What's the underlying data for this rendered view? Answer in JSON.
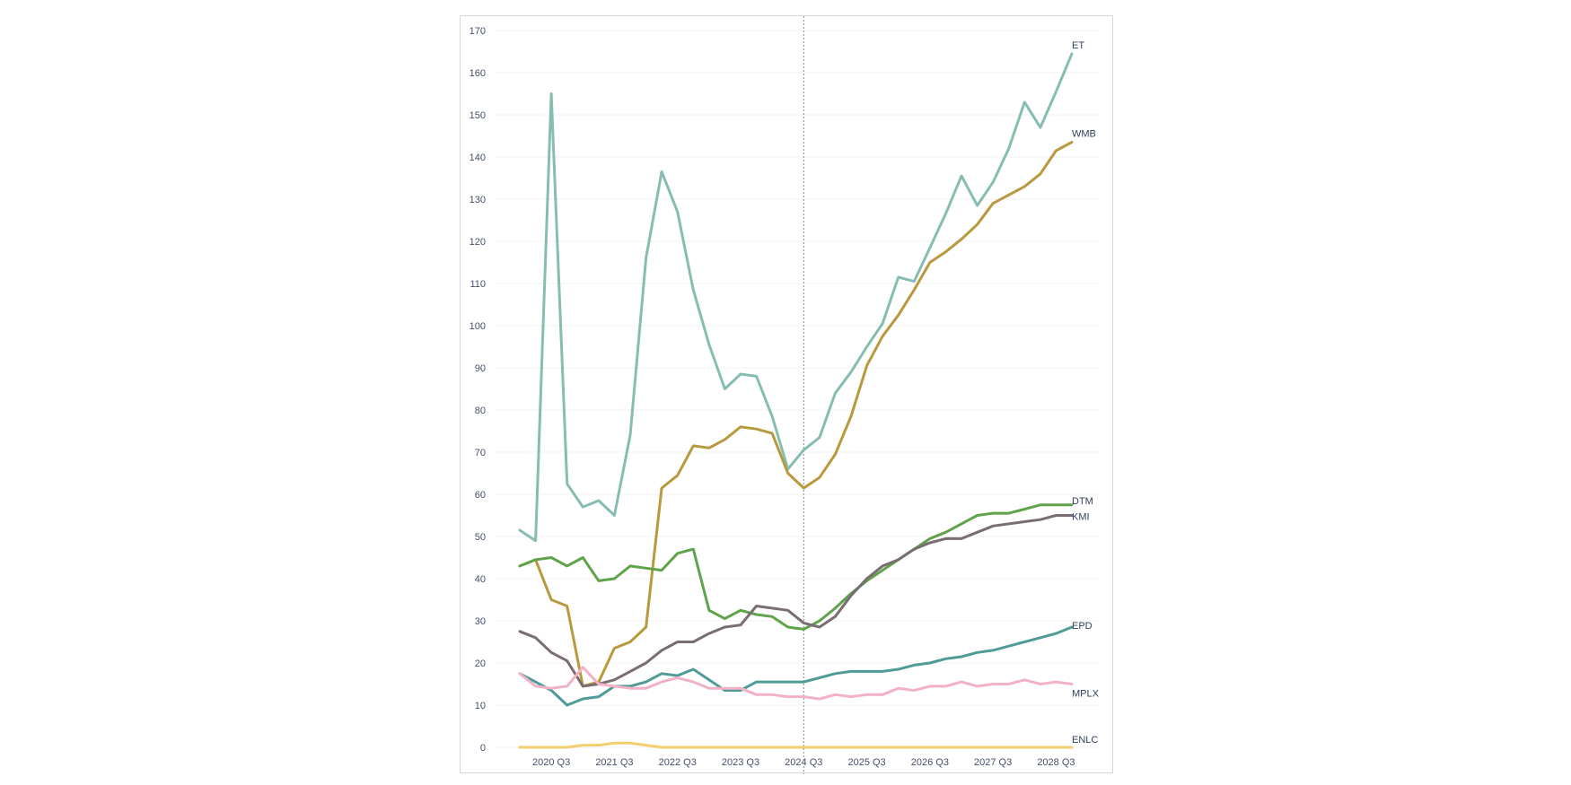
{
  "chart_data": {
    "type": "line",
    "x_labels": [
      "2020 Q3",
      "2021 Q3",
      "2022 Q3",
      "2023 Q3",
      "2024 Q3",
      "2025 Q3",
      "2026 Q3",
      "2027 Q3",
      "2028 Q3"
    ],
    "ylim": [
      0,
      170
    ],
    "y_ticks": [
      0,
      10,
      20,
      30,
      40,
      50,
      60,
      70,
      80,
      90,
      100,
      110,
      120,
      130,
      140,
      150,
      160,
      170
    ],
    "grid": true,
    "divider_label_index": 4,
    "series": [
      {
        "name": "ET",
        "color": "#86bdb2",
        "values": [
          51.5,
          49,
          155,
          62.5,
          57,
          58.5,
          55,
          74,
          116,
          136.5,
          127,
          108.5,
          95.5,
          85,
          88.5,
          88,
          78.5,
          66,
          70.5,
          73.5,
          84,
          89,
          95,
          100.5,
          111.5,
          110.5,
          118.5,
          126.5,
          135.5,
          128.5,
          134,
          142,
          153,
          147,
          155.5,
          164.5
        ]
      },
      {
        "name": "WMB",
        "color": "#b8993d",
        "values": [
          43,
          44.5,
          35,
          33.5,
          14.5,
          15.5,
          23.5,
          25,
          28.5,
          61.5,
          64.5,
          71.5,
          71,
          73,
          76,
          75.5,
          74.5,
          65,
          61.5,
          64,
          69.5,
          78.5,
          90.5,
          97.5,
          102.5,
          108.5,
          115,
          117.5,
          120.5,
          124,
          129,
          131,
          133,
          136,
          141.5,
          143.5
        ]
      },
      {
        "name": "DTM",
        "color": "#5fa34a",
        "values": [
          43,
          44.5,
          45,
          43,
          45,
          39.5,
          40,
          43,
          42.5,
          42,
          46,
          47,
          32.5,
          30.5,
          32.5,
          31.5,
          31,
          28.5,
          28,
          30,
          33,
          36.5,
          39.5,
          42,
          44.5,
          47,
          49.5,
          51,
          53,
          55,
          55.5,
          55.5,
          56.5,
          57.5,
          57.5,
          57.5
        ]
      },
      {
        "name": "KMI",
        "color": "#7a6d72",
        "values": [
          27.5,
          26,
          22.5,
          20.5,
          14.5,
          15,
          16,
          18,
          20,
          23,
          25,
          25,
          27,
          28.5,
          29,
          33.5,
          33,
          32.5,
          29.5,
          28.5,
          31,
          36,
          40,
          43,
          44.5,
          47,
          48.5,
          49.5,
          49.5,
          51,
          52.5,
          53,
          53.5,
          54,
          55,
          55
        ]
      },
      {
        "name": "EPD",
        "color": "#4e9b98",
        "values": [
          17.5,
          15.5,
          13.5,
          10,
          11.5,
          12,
          14.5,
          14.5,
          15.5,
          17.5,
          17,
          18.5,
          16,
          13.5,
          13.5,
          15.5,
          15.5,
          15.5,
          15.5,
          16.5,
          17.5,
          18,
          18,
          18,
          18.5,
          19.5,
          20,
          21,
          21.5,
          22.5,
          23,
          24,
          25,
          26,
          27,
          28.5
        ]
      },
      {
        "name": "MPLX",
        "color": "#f2b1c6",
        "values": [
          17.5,
          14.5,
          14,
          14.5,
          19,
          15,
          14.5,
          14,
          14,
          15.5,
          16.5,
          15.5,
          14,
          14,
          14,
          12.5,
          12.5,
          12,
          12,
          11.5,
          12.5,
          12,
          12.5,
          12.5,
          14,
          13.5,
          14.5,
          14.5,
          15.5,
          14.5,
          15,
          15,
          16,
          15,
          15.5,
          15
        ]
      },
      {
        "name": "ENLC",
        "color": "#f2ce6d",
        "values": [
          0,
          0,
          0,
          0,
          0.5,
          0.5,
          1,
          1,
          0.5,
          0,
          0,
          0,
          0,
          0,
          0,
          0,
          0,
          0,
          0,
          0,
          0,
          0,
          0,
          0,
          0,
          0,
          0,
          0,
          0,
          0,
          0,
          0,
          0,
          0,
          0,
          0
        ]
      }
    ]
  }
}
